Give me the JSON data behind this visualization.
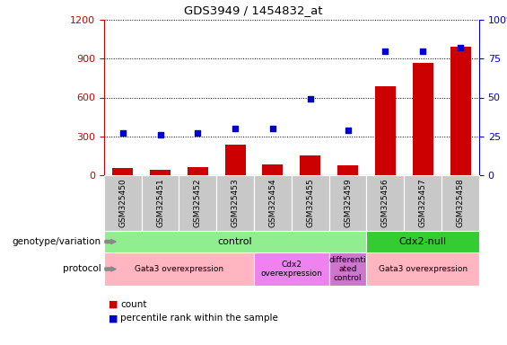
{
  "title": "GDS3949 / 1454832_at",
  "samples": [
    "GSM325450",
    "GSM325451",
    "GSM325452",
    "GSM325453",
    "GSM325454",
    "GSM325455",
    "GSM325459",
    "GSM325456",
    "GSM325457",
    "GSM325458"
  ],
  "counts": [
    55,
    45,
    60,
    235,
    85,
    150,
    75,
    690,
    870,
    990
  ],
  "percentiles": [
    27,
    26,
    27,
    30,
    30,
    49,
    29,
    80,
    80,
    82
  ],
  "bar_color": "#CC0000",
  "dot_color": "#0000CC",
  "ylim_left": [
    0,
    1200
  ],
  "ylim_right": [
    0,
    100
  ],
  "yticks_left": [
    0,
    300,
    600,
    900,
    1200
  ],
  "yticks_right": [
    0,
    25,
    50,
    75,
    100
  ],
  "genotype_groups": [
    {
      "label": "control",
      "start": 0,
      "end": 7,
      "color": "#90EE90"
    },
    {
      "label": "Cdx2-null",
      "start": 7,
      "end": 10,
      "color": "#33CC33"
    }
  ],
  "protocol_groups": [
    {
      "label": "Gata3 overexpression",
      "start": 0,
      "end": 4,
      "color": "#FFB6C1"
    },
    {
      "label": "Cdx2\noverexpression",
      "start": 4,
      "end": 6,
      "color": "#EE82EE"
    },
    {
      "label": "differenti\nated\ncontrol",
      "start": 6,
      "end": 7,
      "color": "#CC77CC"
    },
    {
      "label": "Gata3 overexpression",
      "start": 7,
      "end": 10,
      "color": "#FFB6C1"
    }
  ],
  "legend_count_color": "#CC0000",
  "legend_dot_color": "#0000CC",
  "left_axis_color": "#CC0000",
  "right_axis_color": "#0000CC",
  "sample_bg_color": "#C8C8C8",
  "grid_color": "black"
}
